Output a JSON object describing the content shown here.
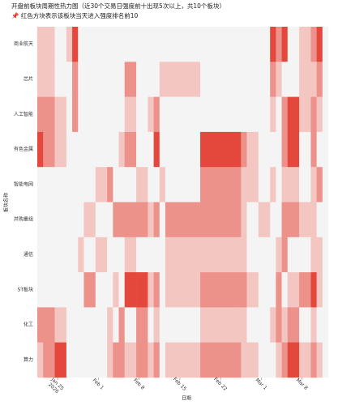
{
  "chart_data": {
    "type": "heatmap",
    "title": "开盘前板块周期性热力图（近30个交易日强度前十出现5次以上，共10个板块）",
    "subtitle": "📌 红色方块表示该板块当天进入强度排名前10",
    "x_label": "日期",
    "y_label": "板块名称",
    "x": [
      "2026-01-22",
      "2026-01-23",
      "2026-01-26",
      "2026-01-27",
      "2026-01-28",
      "2026-01-29",
      "2026-01-30",
      "2026-02-02",
      "2026-02-03",
      "2026-02-04",
      "2026-02-05",
      "2026-02-06",
      "2026-02-09",
      "2026-02-10",
      "2026-02-11",
      "2026-02-12",
      "2026-02-13",
      "2026-02-24",
      "2026-02-25",
      "2026-02-26",
      "2026-02-27",
      "2026-03-02",
      "2026-03-03",
      "2026-03-04",
      "2026-03-05",
      "2026-03-06",
      "2026-03-09",
      "2026-03-10",
      "2026-03-11",
      "2026-03-12"
    ],
    "categories": [
      "商业航天",
      "芯片",
      "人工智能",
      "有色金属",
      "智能电网",
      "并购重组",
      "通信",
      "ST板块",
      "化工",
      "算力"
    ],
    "z": [
      [
        1,
        1,
        0,
        1,
        3,
        0,
        0,
        0,
        0,
        0,
        0,
        0,
        0,
        0,
        0,
        0,
        0,
        0,
        0,
        0,
        0,
        0,
        3,
        2,
        3,
        0,
        1,
        2,
        3,
        0
      ],
      [
        1,
        1,
        0,
        0,
        2,
        0,
        0,
        0,
        0,
        0,
        0,
        2,
        0,
        0,
        0,
        1,
        1,
        0,
        0,
        0,
        0,
        0,
        2,
        1,
        0,
        0,
        1,
        1,
        2,
        0
      ],
      [
        2,
        2,
        1,
        0,
        2,
        0,
        0,
        0,
        0,
        0,
        0,
        1,
        0,
        1,
        2,
        0,
        0,
        0,
        0,
        0,
        0,
        0,
        1,
        0,
        2,
        3,
        1,
        2,
        1,
        0
      ],
      [
        3,
        2,
        1,
        0,
        0,
        0,
        0,
        0,
        0,
        0,
        1,
        2,
        0,
        0,
        3,
        0,
        0,
        3,
        3,
        2,
        1,
        0,
        0,
        0,
        2,
        3,
        0,
        2,
        0,
        0
      ],
      [
        0,
        0,
        0,
        0,
        0,
        0,
        0,
        1,
        2,
        0,
        0,
        0,
        1,
        0,
        0,
        1,
        0,
        2,
        2,
        1,
        1,
        0,
        1,
        0,
        1,
        1,
        0,
        1,
        2,
        0
      ],
      [
        0,
        0,
        0,
        0,
        0,
        0,
        1,
        0,
        0,
        2,
        2,
        2,
        2,
        1,
        2,
        0,
        2,
        2,
        2,
        1,
        0,
        1,
        0,
        0,
        2,
        2,
        1,
        1,
        0,
        0
      ],
      [
        0,
        0,
        0,
        0,
        0,
        1,
        0,
        1,
        0,
        0,
        0,
        1,
        0,
        0,
        0,
        0,
        1,
        1,
        1,
        1,
        0,
        0,
        0,
        1,
        2,
        0,
        0,
        1,
        1,
        0
      ],
      [
        0,
        0,
        0,
        0,
        0,
        0,
        2,
        0,
        0,
        1,
        0,
        3,
        3,
        1,
        2,
        0,
        1,
        2,
        2,
        2,
        1,
        0,
        0,
        2,
        0,
        1,
        2,
        3,
        1,
        0
      ],
      [
        2,
        2,
        1,
        0,
        0,
        0,
        0,
        0,
        1,
        0,
        2,
        0,
        2,
        0,
        1,
        0,
        0,
        1,
        1,
        1,
        0,
        0,
        1,
        2,
        1,
        2,
        0,
        1,
        0,
        0
      ],
      [
        1,
        2,
        3,
        0,
        0,
        0,
        0,
        0,
        1,
        2,
        2,
        1,
        2,
        1,
        2,
        0,
        1,
        2,
        2,
        1,
        1,
        0,
        0,
        1,
        2,
        3,
        1,
        2,
        1,
        0
      ]
    ],
    "colorscale": [
      "#f4f4f4",
      "#f4c6c2",
      "#ec928b",
      "#e4473c"
    ],
    "xticks": [
      {
        "value": "2026-01-25",
        "label": "Jan 25\n2026"
      },
      {
        "value": "2026-02-01",
        "label": "Feb 1"
      },
      {
        "value": "2026-02-08",
        "label": "Feb 8"
      },
      {
        "value": "2026-02-15",
        "label": "Feb 15"
      },
      {
        "value": "2026-02-22",
        "label": "Feb 22"
      },
      {
        "value": "2026-03-01",
        "label": "Mar 1"
      },
      {
        "value": "2026-03-08",
        "label": "Mar 8"
      }
    ]
  }
}
